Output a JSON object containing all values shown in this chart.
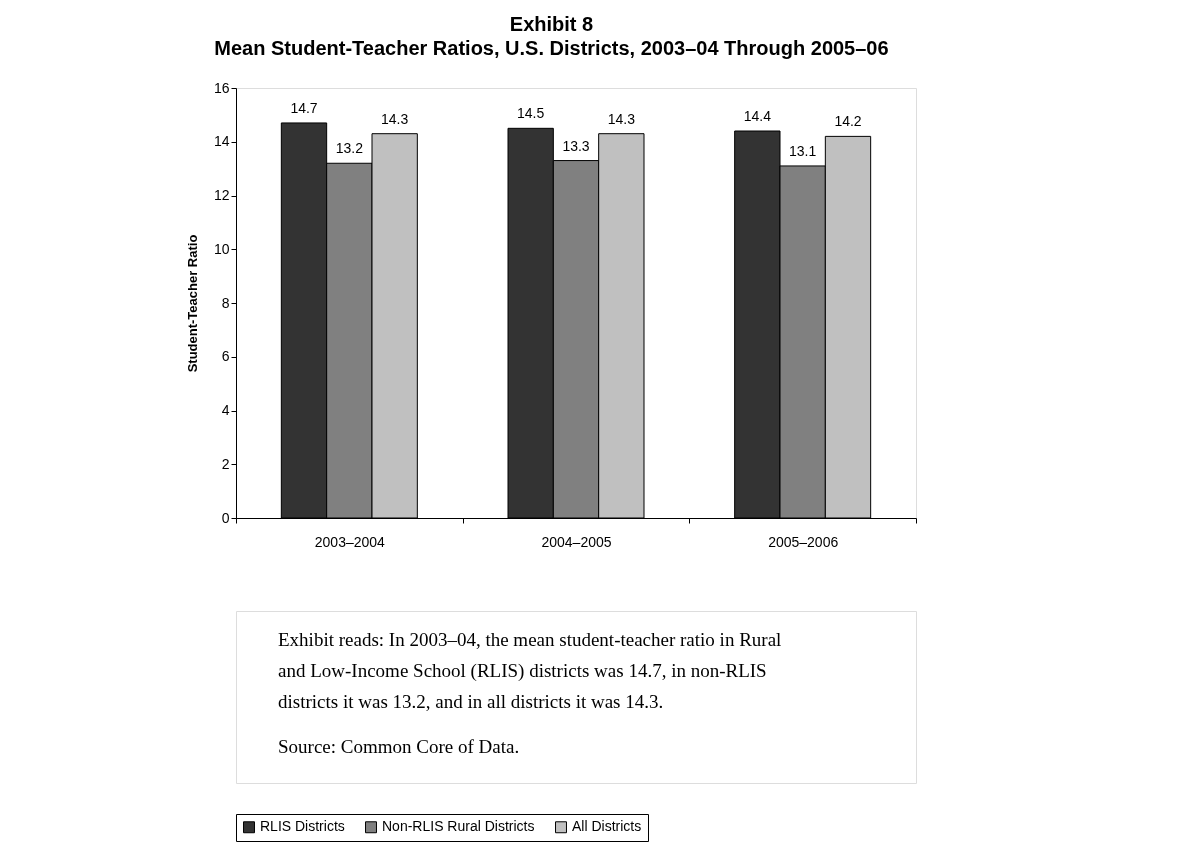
{
  "chart_data": {
    "type": "bar",
    "title": "Exhibit 8",
    "subtitle": "Mean Student-Teacher Ratios, U.S. Districts, 2003–04 Through 2005–06",
    "ylabel": "Student-Teacher Ratio",
    "categories": [
      "2003–2004",
      "2004–2005",
      "2005–2006"
    ],
    "series": [
      {
        "name": "RLIS Districts",
        "color": "#333333",
        "values": [
          14.7,
          14.5,
          14.4
        ]
      },
      {
        "name": "Non-RLIS Rural Districts",
        "color": "#808080",
        "values": [
          13.2,
          13.3,
          13.1
        ]
      },
      {
        "name": "All Districts",
        "color": "#c0c0c0",
        "values": [
          14.3,
          14.3,
          14.2
        ]
      }
    ],
    "ylim": [
      0,
      16
    ],
    "yticks": [
      0,
      2,
      4,
      6,
      8,
      10,
      12,
      14,
      16
    ],
    "grid": false,
    "data_labels": true,
    "legend": "bottom",
    "annotations": [
      "Exhibit reads: In 2003–04, the mean student-teacher ratio in Rural and Low-Income School (RLIS) districts was 14.7, in non-RLIS districts it was 13.2, and in all districts it was 14.3.",
      "Source: Common Core of Data."
    ]
  }
}
